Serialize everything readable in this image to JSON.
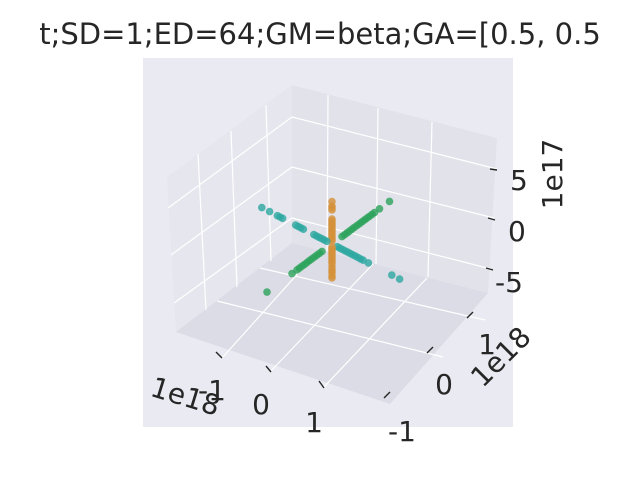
{
  "chart_data": {
    "type": "scatter",
    "projection": "3d",
    "title": "t;SD=1;ED=64;GM=beta;GA=[0.5, 0.5",
    "axes": {
      "x": {
        "tick_labels": [
          "-1",
          "0",
          "1"
        ],
        "offset_label": "1e18"
      },
      "y": {
        "tick_labels": [
          "-1",
          "0",
          "1"
        ],
        "offset_label": "1e18"
      },
      "z": {
        "tick_labels": [
          "-5",
          "0",
          "5"
        ],
        "offset_label": "1e17"
      }
    },
    "grid": true,
    "colors": {
      "x_series": "#2ca8a0",
      "y_series": "#2aa35a",
      "z_series": "#d4913a",
      "pane": "#eaeaf2"
    },
    "series": [
      {
        "color": "#2ca8a0",
        "points": [
          [
            -1.35,
            0,
            0
          ],
          [
            -1.2,
            0,
            0
          ],
          [
            -1.05,
            0,
            0
          ],
          [
            -1.0,
            0,
            0
          ],
          [
            -0.95,
            0,
            0
          ],
          [
            -0.7,
            0,
            0
          ],
          [
            -0.65,
            0,
            0
          ],
          [
            -0.6,
            0,
            0
          ],
          [
            -0.55,
            0,
            0
          ],
          [
            -0.35,
            0,
            0
          ],
          [
            -0.3,
            0,
            0
          ],
          [
            -0.25,
            0,
            0
          ],
          [
            -0.2,
            0,
            0
          ],
          [
            -0.15,
            0,
            0
          ],
          [
            -0.1,
            0,
            0
          ],
          [
            0.1,
            0,
            0
          ],
          [
            0.15,
            0,
            0
          ],
          [
            0.2,
            0,
            0
          ],
          [
            0.25,
            0,
            0
          ],
          [
            0.3,
            0,
            0
          ],
          [
            0.35,
            0,
            0
          ],
          [
            0.4,
            0,
            0
          ],
          [
            0.45,
            0,
            0
          ],
          [
            0.5,
            0,
            0
          ],
          [
            0.55,
            0,
            0
          ],
          [
            0.6,
            0,
            0
          ],
          [
            0.7,
            0,
            0
          ],
          [
            1.15,
            0,
            0
          ],
          [
            1.3,
            0,
            0
          ]
        ]
      },
      {
        "color": "#2aa35a",
        "points": [
          [
            0,
            -1.15,
            0
          ],
          [
            0,
            -0.95,
            0
          ],
          [
            0,
            -0.85,
            0
          ],
          [
            0,
            -0.8,
            0
          ],
          [
            0,
            -0.75,
            0
          ],
          [
            0,
            -0.7,
            0
          ],
          [
            0,
            -0.65,
            0
          ],
          [
            0,
            -0.6,
            0
          ],
          [
            0,
            -0.55,
            0
          ],
          [
            0,
            -0.5,
            0
          ],
          [
            0,
            -0.45,
            0
          ],
          [
            0,
            -0.4,
            0
          ],
          [
            0,
            -0.35,
            0
          ],
          [
            0,
            -0.3,
            0
          ],
          [
            0,
            -0.25,
            0
          ],
          [
            0,
            -0.2,
            0
          ],
          [
            0,
            0.2,
            0
          ],
          [
            0,
            0.25,
            0
          ],
          [
            0,
            0.3,
            0
          ],
          [
            0,
            0.35,
            0
          ],
          [
            0,
            0.4,
            0
          ],
          [
            0,
            0.45,
            0
          ],
          [
            0,
            0.5,
            0
          ],
          [
            0,
            0.55,
            0
          ],
          [
            0,
            0.6,
            0
          ],
          [
            0,
            0.65,
            0
          ],
          [
            0,
            0.7,
            0
          ],
          [
            0,
            0.8,
            0
          ],
          [
            0,
            1.3,
            0
          ]
        ]
      },
      {
        "color": "#d4913a",
        "points": [
          [
            0,
            0,
            8.5
          ],
          [
            0,
            0,
            7.6
          ],
          [
            0,
            0,
            7.2
          ],
          [
            0,
            0,
            6.8
          ],
          [
            0,
            0,
            5.0
          ],
          [
            0,
            0,
            4.6
          ],
          [
            0,
            0,
            4.2
          ],
          [
            0,
            0,
            3.8
          ],
          [
            0,
            0,
            3.4
          ],
          [
            0,
            0,
            3.0
          ],
          [
            0,
            0,
            2.6
          ],
          [
            0,
            0,
            2.2
          ],
          [
            0,
            0,
            1.8
          ],
          [
            0,
            0,
            1.4
          ],
          [
            0,
            0,
            1.0
          ],
          [
            0,
            0,
            0.6
          ],
          [
            0,
            0,
            -0.6
          ],
          [
            0,
            0,
            -1.0
          ],
          [
            0,
            0,
            -1.4
          ],
          [
            0,
            0,
            -1.8
          ],
          [
            0,
            0,
            -2.2
          ],
          [
            0,
            0,
            -2.6
          ],
          [
            0,
            0,
            -3.0
          ],
          [
            0,
            0,
            -3.4
          ],
          [
            0,
            0,
            -3.8
          ],
          [
            0,
            0,
            -4.4
          ],
          [
            0,
            0,
            -5.0
          ],
          [
            0,
            0,
            -5.4
          ],
          [
            0,
            0,
            -5.8
          ],
          [
            0,
            0,
            -6.4
          ],
          [
            0,
            0,
            -6.8
          ]
        ]
      }
    ]
  }
}
